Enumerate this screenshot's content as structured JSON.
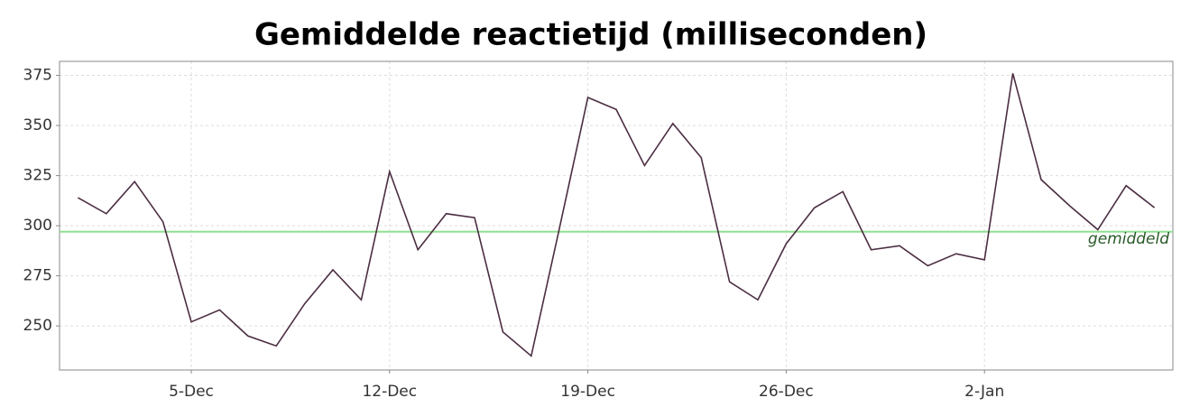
{
  "chart_data": {
    "type": "line",
    "title": "Gemiddelde reactietijd (milliseconden)",
    "categories": [
      null,
      null,
      null,
      null,
      "5-Dec",
      null,
      null,
      null,
      null,
      null,
      null,
      "12-Dec",
      null,
      null,
      null,
      null,
      null,
      null,
      "19-Dec",
      null,
      null,
      null,
      null,
      null,
      null,
      "26-Dec",
      null,
      null,
      null,
      null,
      null,
      null,
      "2-Jan",
      null,
      null,
      null,
      null,
      null,
      null
    ],
    "series": [
      {
        "name": "reactietijd",
        "color": "#4b2d42",
        "values": [
          314,
          306,
          322,
          302,
          252,
          258,
          245,
          240,
          261,
          278,
          263,
          327,
          288,
          306,
          304,
          247,
          235,
          299,
          364,
          358,
          330,
          351,
          334,
          272,
          263,
          291,
          309,
          317,
          288,
          290,
          280,
          286,
          283,
          376,
          323,
          310,
          298,
          320,
          309
        ]
      }
    ],
    "average": {
      "label": "gemiddeld",
      "value": 297,
      "color": "#8fe08f"
    },
    "ylim": [
      228,
      382
    ],
    "yticks": [
      250,
      275,
      300,
      325,
      350,
      375
    ],
    "grid": true
  }
}
